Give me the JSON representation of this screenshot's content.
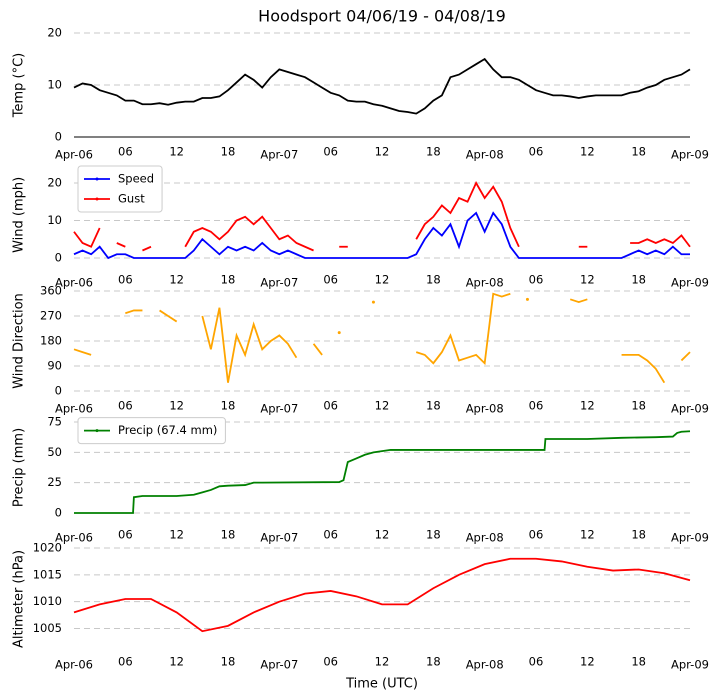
{
  "chart_data": [
    {
      "type": "line",
      "title": "Hoodsport 04/06/19 - 04/08/19",
      "ylabel": "Temp (°C)",
      "x": [
        0,
        1,
        2,
        3,
        4,
        5,
        6,
        7,
        8,
        9,
        10,
        11,
        12,
        13,
        14,
        15,
        16,
        17,
        18,
        19,
        20,
        21,
        22,
        23,
        24,
        25,
        26,
        27,
        28,
        29,
        30,
        31,
        32,
        33,
        34,
        35,
        36,
        37,
        38,
        39,
        40,
        41,
        42,
        43,
        44,
        45,
        46,
        47,
        48,
        49,
        50,
        51,
        52,
        53,
        54,
        55,
        56,
        57,
        58,
        59,
        60,
        61,
        62,
        63,
        64,
        65,
        66,
        67,
        68,
        69,
        70,
        71,
        72
      ],
      "series": [
        {
          "color": "#000000",
          "values": [
            9.5,
            10.3,
            10,
            9,
            8.5,
            8,
            7,
            7,
            6.3,
            6.3,
            6.5,
            6.2,
            6.6,
            6.8,
            6.8,
            7.5,
            7.5,
            7.8,
            9,
            10.5,
            12,
            11,
            9.5,
            11.5,
            13,
            12.5,
            12,
            11.5,
            10.5,
            9.5,
            8.5,
            8,
            7,
            6.8,
            6.8,
            6.3,
            6,
            5.5,
            5,
            4.8,
            4.5,
            5.5,
            7,
            8,
            11.5,
            12,
            13,
            14,
            15,
            13,
            11.5,
            11.5,
            11,
            10,
            9,
            8.5,
            8,
            8,
            7.8,
            7.5,
            7.8,
            8,
            8,
            8,
            8,
            8.5,
            8.8,
            9.5,
            10,
            11,
            11.5,
            12,
            13
          ]
        }
      ],
      "xlim": [
        0,
        72
      ],
      "xticks": [
        {
          "value": 0,
          "label": "Apr-06"
        },
        {
          "value": 6,
          "label": "06"
        },
        {
          "value": 12,
          "label": "12"
        },
        {
          "value": 18,
          "label": "18"
        },
        {
          "value": 24,
          "label": "Apr-07"
        },
        {
          "value": 30,
          "label": "06"
        },
        {
          "value": 36,
          "label": "12"
        },
        {
          "value": 42,
          "label": "18"
        },
        {
          "value": 48,
          "label": "Apr-08"
        },
        {
          "value": 54,
          "label": "06"
        },
        {
          "value": 60,
          "label": "12"
        },
        {
          "value": 66,
          "label": "18"
        },
        {
          "value": 72,
          "label": "Apr-09"
        }
      ],
      "ylim": [
        0,
        20
      ],
      "yticks": [
        0,
        10,
        20
      ],
      "grid": true
    },
    {
      "type": "line",
      "ylabel": "Wind (mph)",
      "legend": "upper left",
      "x": [
        0,
        1,
        2,
        3,
        4,
        5,
        6,
        7,
        8,
        9,
        10,
        11,
        12,
        13,
        14,
        15,
        16,
        17,
        18,
        19,
        20,
        21,
        22,
        23,
        24,
        25,
        26,
        27,
        28,
        29,
        30,
        31,
        32,
        33,
        34,
        35,
        36,
        37,
        38,
        39,
        40,
        41,
        42,
        43,
        44,
        45,
        46,
        47,
        48,
        49,
        50,
        51,
        52,
        53,
        54,
        55,
        56,
        57,
        58,
        59,
        60,
        61,
        62,
        63,
        64,
        65,
        66,
        67,
        68,
        69,
        70,
        71,
        72
      ],
      "series": [
        {
          "name": "Speed",
          "color": "#0000ff",
          "values": [
            1,
            2,
            1,
            3,
            0,
            1,
            1,
            0,
            0,
            0,
            0,
            0,
            0,
            0,
            2,
            5,
            3,
            1,
            3,
            2,
            3,
            2,
            4,
            2,
            1,
            2,
            1,
            0,
            0,
            0,
            0,
            0,
            0,
            0,
            0,
            0,
            0,
            0,
            0,
            0,
            1,
            5,
            8,
            6,
            9,
            3,
            10,
            12,
            7,
            12,
            9,
            3,
            0,
            0,
            0,
            0,
            0,
            0,
            0,
            0,
            0,
            0,
            0,
            0,
            0,
            1,
            2,
            1,
            2,
            1,
            3,
            1,
            1
          ]
        },
        {
          "name": "Gust",
          "color": "#ff0000",
          "values": [
            7,
            4,
            3,
            8,
            null,
            4,
            3,
            null,
            2,
            3,
            null,
            null,
            null,
            3,
            7,
            8,
            7,
            5,
            7,
            10,
            11,
            9,
            11,
            8,
            5,
            6,
            4,
            3,
            2,
            null,
            null,
            3,
            3,
            null,
            null,
            null,
            null,
            null,
            null,
            null,
            5,
            9,
            11,
            14,
            12,
            16,
            15,
            20,
            16,
            19,
            15,
            8,
            3,
            null,
            null,
            null,
            null,
            null,
            null,
            3,
            3,
            null,
            null,
            null,
            null,
            4,
            4,
            5,
            4,
            5,
            4,
            6,
            3
          ]
        }
      ],
      "xlim": [
        0,
        72
      ],
      "xticks": [
        {
          "value": 0,
          "label": "Apr-06"
        },
        {
          "value": 6,
          "label": "06"
        },
        {
          "value": 12,
          "label": "12"
        },
        {
          "value": 18,
          "label": "18"
        },
        {
          "value": 24,
          "label": "Apr-07"
        },
        {
          "value": 30,
          "label": "06"
        },
        {
          "value": 36,
          "label": "12"
        },
        {
          "value": 42,
          "label": "18"
        },
        {
          "value": 48,
          "label": "Apr-08"
        },
        {
          "value": 54,
          "label": "06"
        },
        {
          "value": 60,
          "label": "12"
        },
        {
          "value": 66,
          "label": "18"
        },
        {
          "value": 72,
          "label": "Apr-09"
        }
      ],
      "ylim": [
        -1,
        24
      ],
      "yticks": [
        0,
        10,
        20
      ],
      "grid": true
    },
    {
      "type": "line",
      "ylabel": "Wind Direction",
      "x": [
        0,
        1,
        2,
        3,
        4,
        5,
        6,
        7,
        8,
        9,
        10,
        11,
        12,
        13,
        14,
        15,
        16,
        17,
        18,
        19,
        20,
        21,
        22,
        23,
        24,
        25,
        26,
        27,
        28,
        29,
        30,
        31,
        32,
        33,
        34,
        35,
        36,
        37,
        38,
        39,
        40,
        41,
        42,
        43,
        44,
        45,
        46,
        47,
        48,
        49,
        50,
        51,
        52,
        53,
        54,
        55,
        56,
        57,
        58,
        59,
        60,
        61,
        62,
        63,
        64,
        65,
        66,
        67,
        68,
        69,
        70,
        71,
        72
      ],
      "series": [
        {
          "color": "#ffa500",
          "values": [
            150,
            140,
            130,
            null,
            null,
            null,
            280,
            290,
            290,
            null,
            290,
            270,
            250,
            null,
            null,
            270,
            150,
            300,
            30,
            200,
            130,
            240,
            150,
            180,
            200,
            170,
            120,
            null,
            170,
            130,
            null,
            210,
            null,
            null,
            null,
            320,
            null,
            null,
            null,
            null,
            140,
            130,
            100,
            140,
            200,
            110,
            120,
            130,
            100,
            350,
            340,
            350,
            null,
            330,
            null,
            null,
            null,
            null,
            330,
            320,
            330,
            null,
            null,
            null,
            130,
            130,
            130,
            110,
            80,
            30,
            null,
            110,
            140
          ]
        }
      ],
      "xlim": [
        0,
        72
      ],
      "xticks": [
        {
          "value": 0,
          "label": "Apr-06"
        },
        {
          "value": 6,
          "label": "06"
        },
        {
          "value": 12,
          "label": "12"
        },
        {
          "value": 18,
          "label": "18"
        },
        {
          "value": 24,
          "label": "Apr-07"
        },
        {
          "value": 30,
          "label": "06"
        },
        {
          "value": 36,
          "label": "12"
        },
        {
          "value": 42,
          "label": "18"
        },
        {
          "value": 48,
          "label": "Apr-08"
        },
        {
          "value": 54,
          "label": "06"
        },
        {
          "value": 60,
          "label": "12"
        },
        {
          "value": 66,
          "label": "18"
        },
        {
          "value": 72,
          "label": "Apr-09"
        }
      ],
      "ylim": [
        0,
        360
      ],
      "yticks": [
        0,
        90,
        180,
        270,
        360
      ],
      "grid": true
    },
    {
      "type": "line",
      "ylabel": "Precip (mm)",
      "legend": "upper left",
      "x": [
        0,
        6.9,
        7,
        8,
        12,
        14,
        15,
        16,
        17,
        18,
        20,
        21,
        22,
        31,
        31.5,
        32,
        33,
        34,
        35,
        36,
        37,
        40,
        55,
        55.1,
        56,
        60,
        64,
        68,
        70,
        70.5,
        71,
        72
      ],
      "series": [
        {
          "name": "Precip (67.4 mm)",
          "color": "#008000",
          "values": [
            0,
            0,
            13,
            14,
            14,
            15,
            17,
            19,
            22,
            22.5,
            23,
            25,
            25,
            25.5,
            27,
            42,
            45,
            48,
            50,
            51,
            52,
            52,
            52,
            61,
            61,
            61,
            62,
            62.5,
            63,
            66,
            67,
            67.4
          ]
        }
      ],
      "xlim": [
        0,
        72
      ],
      "xticks": [
        {
          "value": 0,
          "label": "Apr-06"
        },
        {
          "value": 6,
          "label": "06"
        },
        {
          "value": 12,
          "label": "12"
        },
        {
          "value": 18,
          "label": "18"
        },
        {
          "value": 24,
          "label": "Apr-07"
        },
        {
          "value": 30,
          "label": "06"
        },
        {
          "value": 36,
          "label": "12"
        },
        {
          "value": 42,
          "label": "18"
        },
        {
          "value": 48,
          "label": "Apr-08"
        },
        {
          "value": 54,
          "label": "06"
        },
        {
          "value": 60,
          "label": "12"
        },
        {
          "value": 66,
          "label": "18"
        },
        {
          "value": 72,
          "label": "Apr-09"
        }
      ],
      "ylim": [
        -2,
        77
      ],
      "yticks": [
        0,
        25,
        50,
        75
      ],
      "grid": true
    },
    {
      "type": "line",
      "ylabel": "Altimeter (hPa)",
      "xlabel": "Time (UTC)",
      "x": [
        0,
        3,
        6,
        9,
        12,
        15,
        18,
        21,
        24,
        27,
        30,
        33,
        36,
        39,
        42,
        45,
        48,
        51,
        54,
        57,
        60,
        63,
        66,
        69,
        72
      ],
      "series": [
        {
          "color": "#ff0000",
          "values": [
            1008,
            1009.5,
            1010.5,
            1010.5,
            1008,
            1004.5,
            1005.5,
            1008,
            1010,
            1011.5,
            1012,
            1011,
            1009.5,
            1009.5,
            1012.5,
            1015,
            1017,
            1018,
            1018,
            1017.5,
            1016.5,
            1015.8,
            1016,
            1015.3,
            1014
          ]
        }
      ],
      "xlim": [
        0,
        72
      ],
      "xticks": [
        {
          "value": 0,
          "label": "Apr-06"
        },
        {
          "value": 6,
          "label": "06"
        },
        {
          "value": 12,
          "label": "12"
        },
        {
          "value": 18,
          "label": "18"
        },
        {
          "value": 24,
          "label": "Apr-07"
        },
        {
          "value": 30,
          "label": "06"
        },
        {
          "value": 36,
          "label": "12"
        },
        {
          "value": 42,
          "label": "18"
        },
        {
          "value": 48,
          "label": "Apr-08"
        },
        {
          "value": 54,
          "label": "06"
        },
        {
          "value": 60,
          "label": "12"
        },
        {
          "value": 66,
          "label": "18"
        },
        {
          "value": 72,
          "label": "Apr-09"
        }
      ],
      "ylim": [
        1001,
        1020
      ],
      "yticks": [
        1005,
        1010,
        1015,
        1020
      ],
      "grid": true
    }
  ]
}
